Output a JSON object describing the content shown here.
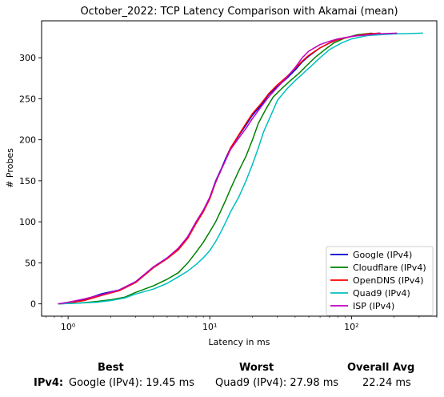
{
  "chart_data": {
    "type": "line",
    "title": "October_2022: TCP Latency Comparison with Akamai (mean)",
    "xlabel": "Latency in ms",
    "ylabel": "# Probes",
    "xscale": "log",
    "xlim": [
      0.65,
      400
    ],
    "ylim": [
      -15,
      345
    ],
    "xticks": [
      1,
      10,
      100
    ],
    "xtick_labels": [
      "10⁰",
      "10¹",
      "10²"
    ],
    "yticks": [
      0,
      50,
      100,
      150,
      200,
      250,
      300
    ],
    "grid": false,
    "legend_position": "lower-right",
    "series": [
      {
        "name": "Google (IPv4)",
        "color": "#0000cc",
        "points": [
          [
            0.85,
            0
          ],
          [
            1.0,
            1
          ],
          [
            1.3,
            5
          ],
          [
            1.7,
            12
          ],
          [
            2.3,
            17
          ],
          [
            3.0,
            27
          ],
          [
            4.0,
            45
          ],
          [
            5.0,
            56
          ],
          [
            6.0,
            67
          ],
          [
            7.0,
            82
          ],
          [
            8.0,
            100
          ],
          [
            9.0,
            114
          ],
          [
            10.0,
            130
          ],
          [
            11.0,
            150
          ],
          [
            12.0,
            164
          ],
          [
            13.0,
            178
          ],
          [
            14.0,
            190
          ],
          [
            16.0,
            205
          ],
          [
            18.0,
            218
          ],
          [
            20.0,
            230
          ],
          [
            23.0,
            242
          ],
          [
            26.0,
            255
          ],
          [
            30.0,
            265
          ],
          [
            35.0,
            275
          ],
          [
            40.0,
            285
          ],
          [
            45.0,
            295
          ],
          [
            50.0,
            302
          ],
          [
            60.0,
            312
          ],
          [
            70.0,
            318
          ],
          [
            80.0,
            322
          ],
          [
            100.0,
            326
          ],
          [
            130.0,
            329
          ],
          [
            160.0,
            330
          ]
        ]
      },
      {
        "name": "Cloudflare (IPv4)",
        "color": "#008000",
        "points": [
          [
            0.85,
            0
          ],
          [
            1.2,
            1
          ],
          [
            1.6,
            3
          ],
          [
            2.0,
            5
          ],
          [
            2.5,
            8
          ],
          [
            3.0,
            14
          ],
          [
            4.0,
            22
          ],
          [
            5.0,
            30
          ],
          [
            6.0,
            38
          ],
          [
            7.0,
            50
          ],
          [
            8.0,
            63
          ],
          [
            9.0,
            75
          ],
          [
            10.0,
            88
          ],
          [
            11.0,
            100
          ],
          [
            12.0,
            114
          ],
          [
            13.0,
            127
          ],
          [
            14.0,
            140
          ],
          [
            16.0,
            162
          ],
          [
            18.0,
            180
          ],
          [
            20.0,
            200
          ],
          [
            22.0,
            220
          ],
          [
            25.0,
            238
          ],
          [
            28.0,
            252
          ],
          [
            32.0,
            262
          ],
          [
            37.0,
            272
          ],
          [
            42.0,
            280
          ],
          [
            48.0,
            290
          ],
          [
            55.0,
            300
          ],
          [
            65.0,
            310
          ],
          [
            75.0,
            318
          ],
          [
            90.0,
            324
          ],
          [
            110.0,
            328
          ],
          [
            140.0,
            330
          ]
        ]
      },
      {
        "name": "OpenDNS (IPv4)",
        "color": "#ff0000",
        "points": [
          [
            0.85,
            0
          ],
          [
            1.0,
            1
          ],
          [
            1.3,
            4
          ],
          [
            1.7,
            10
          ],
          [
            2.3,
            16
          ],
          [
            3.0,
            26
          ],
          [
            4.0,
            44
          ],
          [
            5.0,
            55
          ],
          [
            6.0,
            66
          ],
          [
            7.0,
            80
          ],
          [
            8.0,
            98
          ],
          [
            9.0,
            112
          ],
          [
            10.0,
            128
          ],
          [
            11.0,
            148
          ],
          [
            12.0,
            163
          ],
          [
            13.0,
            176
          ],
          [
            14.0,
            190
          ],
          [
            16.0,
            206
          ],
          [
            18.0,
            220
          ],
          [
            20.0,
            232
          ],
          [
            23.0,
            244
          ],
          [
            26.0,
            256
          ],
          [
            30.0,
            267
          ],
          [
            35.0,
            277
          ],
          [
            40.0,
            287
          ],
          [
            45.0,
            296
          ],
          [
            50.0,
            303
          ],
          [
            60.0,
            312
          ],
          [
            70.0,
            318
          ],
          [
            80.0,
            322
          ],
          [
            100.0,
            326
          ],
          [
            130.0,
            329
          ],
          [
            160.0,
            330
          ]
        ]
      },
      {
        "name": "Quad9 (IPv4)",
        "color": "#00bfbf",
        "points": [
          [
            0.85,
            0
          ],
          [
            1.2,
            1
          ],
          [
            1.6,
            2
          ],
          [
            2.0,
            4
          ],
          [
            2.5,
            7
          ],
          [
            3.0,
            12
          ],
          [
            4.0,
            18
          ],
          [
            5.0,
            25
          ],
          [
            6.0,
            33
          ],
          [
            7.0,
            40
          ],
          [
            8.0,
            48
          ],
          [
            9.0,
            56
          ],
          [
            10.0,
            65
          ],
          [
            11.0,
            76
          ],
          [
            12.0,
            88
          ],
          [
            13.0,
            100
          ],
          [
            14.0,
            112
          ],
          [
            16.0,
            130
          ],
          [
            18.0,
            150
          ],
          [
            20.0,
            170
          ],
          [
            22.0,
            190
          ],
          [
            24.0,
            210
          ],
          [
            27.0,
            230
          ],
          [
            30.0,
            248
          ],
          [
            35.0,
            262
          ],
          [
            40.0,
            272
          ],
          [
            45.0,
            280
          ],
          [
            52.0,
            290
          ],
          [
            60.0,
            300
          ],
          [
            70.0,
            310
          ],
          [
            85.0,
            318
          ],
          [
            100.0,
            323
          ],
          [
            130.0,
            327
          ],
          [
            200.0,
            329
          ],
          [
            320.0,
            330
          ]
        ]
      },
      {
        "name": "ISP (IPv4)",
        "color": "#bf00bf",
        "points": [
          [
            0.85,
            0
          ],
          [
            1.0,
            2
          ],
          [
            1.3,
            6
          ],
          [
            1.7,
            11
          ],
          [
            2.3,
            17
          ],
          [
            3.0,
            27
          ],
          [
            4.0,
            45
          ],
          [
            5.0,
            56
          ],
          [
            6.0,
            68
          ],
          [
            7.0,
            82
          ],
          [
            8.0,
            100
          ],
          [
            9.0,
            114
          ],
          [
            10.0,
            130
          ],
          [
            11.0,
            149
          ],
          [
            12.0,
            163
          ],
          [
            13.0,
            176
          ],
          [
            14.0,
            188
          ],
          [
            16.0,
            202
          ],
          [
            18.0,
            214
          ],
          [
            20.0,
            226
          ],
          [
            23.0,
            240
          ],
          [
            26.0,
            252
          ],
          [
            30.0,
            264
          ],
          [
            35.0,
            276
          ],
          [
            40.0,
            288
          ],
          [
            45.0,
            300
          ],
          [
            50.0,
            308
          ],
          [
            60.0,
            316
          ],
          [
            70.0,
            320
          ],
          [
            80.0,
            323
          ],
          [
            100.0,
            326
          ],
          [
            150.0,
            329
          ],
          [
            210.0,
            330
          ]
        ]
      }
    ]
  },
  "summary": {
    "best_header": "Best",
    "worst_header": "Worst",
    "avg_header": "Overall Avg",
    "row_label": "IPv4",
    "row_colon": ":",
    "best_value": "Google (IPv4): 19.45 ms",
    "worst_value": "Quad9 (IPv4): 27.98 ms",
    "avg_value": "22.24 ms"
  }
}
